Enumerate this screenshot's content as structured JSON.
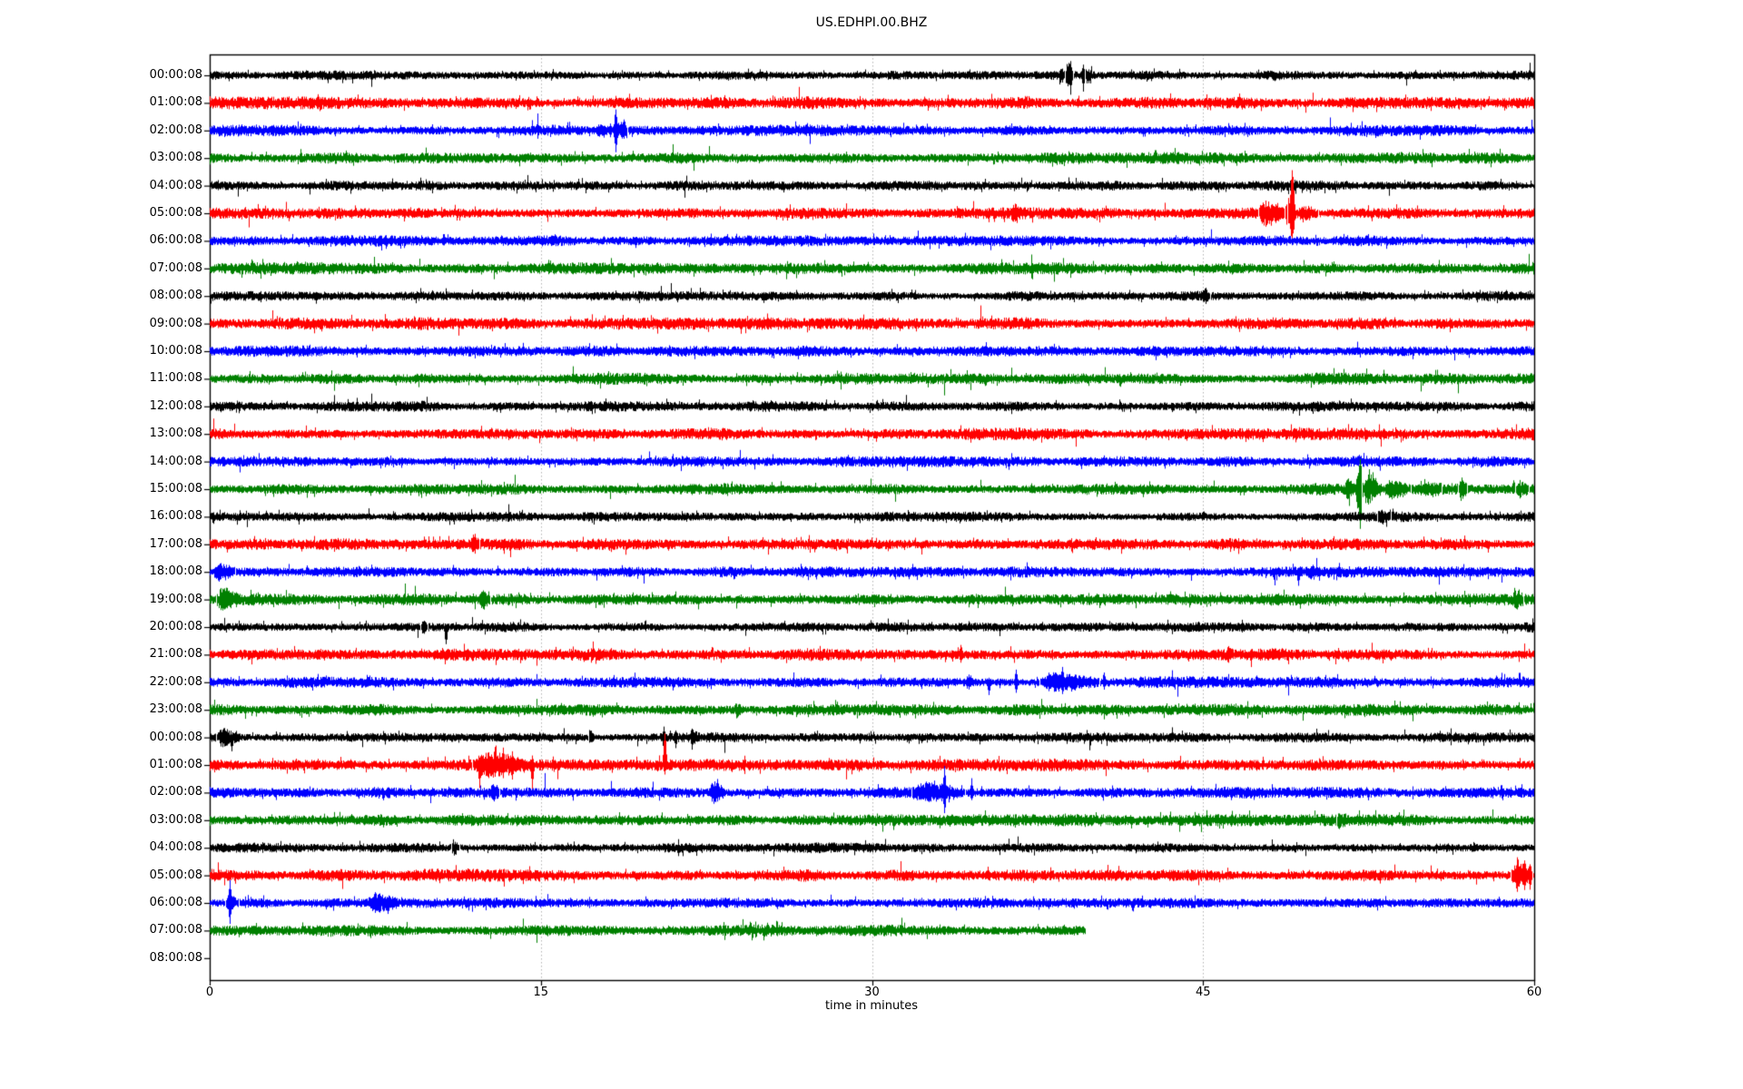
{
  "title": "US.EDHPI.00.BHZ",
  "chart_data": {
    "type": "line",
    "subtype": "seismogram-helicorder-dayplot",
    "title": "US.EDHPI.00.BHZ",
    "xlabel": "time in minutes",
    "xlim": [
      0,
      60
    ],
    "xticks": [
      0,
      15,
      30,
      45,
      60
    ],
    "xtick_labels": [
      "0",
      "15",
      "30",
      "45",
      "60"
    ],
    "grid_x": [
      15,
      30,
      45
    ],
    "grid_style": "dotted",
    "grid_color": "#b3b3b3",
    "axis_color": "#000000",
    "background_color": "#ffffff",
    "trace_colors_cycle": [
      "#000000",
      "#ff0000",
      "#0000ff",
      "#008000"
    ],
    "rows": [
      {
        "label": "00:00:08",
        "color": "#000000",
        "duration_min": 60,
        "noise": 3.4,
        "events": [
          {
            "type": "spike",
            "t": 25.2,
            "up": 6,
            "down": 6,
            "w": 1
          },
          {
            "type": "burst",
            "t": 38.45,
            "dur": 0.25,
            "amp": 8
          },
          {
            "type": "burst",
            "t": 38.75,
            "dur": 0.35,
            "amp": 13
          },
          {
            "type": "spike",
            "t": 39.0,
            "up": 16,
            "down": 22,
            "w": 2
          },
          {
            "type": "spike",
            "t": 39.55,
            "up": 14,
            "down": 18,
            "w": 2
          },
          {
            "type": "burst",
            "t": 39.65,
            "dur": 0.3,
            "amp": 8
          },
          {
            "type": "spike",
            "t": 54.2,
            "up": 2,
            "down": 12,
            "w": 1
          }
        ]
      },
      {
        "label": "01:00:08",
        "color": "#ff0000",
        "duration_min": 60,
        "noise": 4.4,
        "events": []
      },
      {
        "label": "02:00:08",
        "color": "#0000ff",
        "duration_min": 60,
        "noise": 3.9,
        "events": [
          {
            "type": "burst",
            "t": 17.5,
            "dur": 0.6,
            "amp": 7
          },
          {
            "type": "spike",
            "t": 18.15,
            "up": 10,
            "down": 8,
            "w": 2
          },
          {
            "type": "spike",
            "t": 18.4,
            "up": 28,
            "down": 26,
            "w": 2
          },
          {
            "type": "burst",
            "t": 18.3,
            "dur": 0.6,
            "amp": 8
          },
          {
            "type": "spike",
            "t": 18.75,
            "up": 16,
            "down": 12,
            "w": 2
          },
          {
            "type": "spike",
            "t": 44.6,
            "up": 5,
            "down": 3,
            "w": 1
          }
        ]
      },
      {
        "label": "03:00:08",
        "color": "#008000",
        "duration_min": 60,
        "noise": 4.1,
        "events": [
          {
            "type": "spike",
            "t": 4.1,
            "up": 10,
            "down": 6,
            "w": 2
          }
        ]
      },
      {
        "label": "04:00:08",
        "color": "#000000",
        "duration_min": 60,
        "noise": 3.5,
        "events": []
      },
      {
        "label": "05:00:08",
        "color": "#ff0000",
        "duration_min": 60,
        "noise": 4.3,
        "events": [
          {
            "type": "burst",
            "t": 36.3,
            "dur": 0.4,
            "amp": 9
          },
          {
            "type": "burst",
            "t": 47.5,
            "dur": 1.3,
            "amp": 11
          },
          {
            "type": "spike",
            "t": 48.3,
            "up": 12,
            "down": 14,
            "w": 2
          },
          {
            "type": "burst",
            "t": 48.7,
            "dur": 0.5,
            "amp": 13
          },
          {
            "type": "spike",
            "t": 49.02,
            "up": 55,
            "down": 40,
            "w": 3
          },
          {
            "type": "burst",
            "t": 49.3,
            "dur": 0.9,
            "amp": 6
          }
        ]
      },
      {
        "label": "06:00:08",
        "color": "#0000ff",
        "duration_min": 60,
        "noise": 3.8,
        "events": [
          {
            "type": "spike",
            "t": 42.3,
            "up": 2,
            "down": 8,
            "w": 1
          }
        ]
      },
      {
        "label": "07:00:08",
        "color": "#008000",
        "duration_min": 60,
        "noise": 4.2,
        "events": []
      },
      {
        "label": "08:00:08",
        "color": "#000000",
        "duration_min": 60,
        "noise": 3.4,
        "events": [
          {
            "type": "spike",
            "t": 45.1,
            "up": 12,
            "down": 10,
            "w": 2
          },
          {
            "type": "burst",
            "t": 44.9,
            "dur": 0.4,
            "amp": 6
          }
        ]
      },
      {
        "label": "09:00:08",
        "color": "#ff0000",
        "duration_min": 60,
        "noise": 4.3,
        "events": []
      },
      {
        "label": "10:00:08",
        "color": "#0000ff",
        "duration_min": 60,
        "noise": 3.9,
        "events": []
      },
      {
        "label": "11:00:08",
        "color": "#008000",
        "duration_min": 60,
        "noise": 4.1,
        "events": []
      },
      {
        "label": "12:00:08",
        "color": "#000000",
        "duration_min": 60,
        "noise": 3.6,
        "events": []
      },
      {
        "label": "13:00:08",
        "color": "#ff0000",
        "duration_min": 60,
        "noise": 4.2,
        "events": []
      },
      {
        "label": "14:00:08",
        "color": "#0000ff",
        "duration_min": 60,
        "noise": 3.8,
        "events": []
      },
      {
        "label": "15:00:08",
        "color": "#008000",
        "duration_min": 60,
        "noise": 4.1,
        "events": [
          {
            "type": "burst",
            "t": 51.4,
            "dur": 0.5,
            "amp": 10
          },
          {
            "type": "spike",
            "t": 52.0,
            "up": 18,
            "down": 25,
            "w": 2
          },
          {
            "type": "spike",
            "t": 52.1,
            "up": 42,
            "down": 50,
            "w": 3
          },
          {
            "type": "burst",
            "t": 52.2,
            "dur": 0.9,
            "amp": 16
          },
          {
            "type": "spike",
            "t": 52.5,
            "up": 22,
            "down": 12,
            "w": 2
          },
          {
            "type": "burst",
            "t": 53.2,
            "dur": 1.2,
            "amp": 8
          },
          {
            "type": "burst",
            "t": 54.8,
            "dur": 1.0,
            "amp": 4
          },
          {
            "type": "burst",
            "t": 56.55,
            "dur": 0.4,
            "amp": 10
          },
          {
            "type": "spike",
            "t": 59.05,
            "up": 12,
            "down": 6,
            "w": 2
          },
          {
            "type": "burst",
            "t": 59.15,
            "dur": 0.6,
            "amp": 6
          }
        ]
      },
      {
        "label": "16:00:08",
        "color": "#000000",
        "duration_min": 60,
        "noise": 3.4,
        "events": [
          {
            "type": "spike",
            "t": 8.4,
            "up": 5,
            "down": 5,
            "w": 1
          },
          {
            "type": "spike",
            "t": 12.9,
            "up": 2,
            "down": 6,
            "w": 1
          },
          {
            "type": "burst",
            "t": 52.9,
            "dur": 0.6,
            "amp": 5
          },
          {
            "type": "spike",
            "t": 56.8,
            "up": 7,
            "down": 3,
            "w": 1
          },
          {
            "type": "spike",
            "t": 57.1,
            "up": 7,
            "down": 3,
            "w": 1
          }
        ]
      },
      {
        "label": "17:00:08",
        "color": "#ff0000",
        "duration_min": 60,
        "noise": 4.3,
        "events": [
          {
            "type": "spike",
            "t": 9.7,
            "up": 9,
            "down": 4,
            "w": 2
          },
          {
            "type": "burst",
            "t": 11.8,
            "dur": 0.4,
            "amp": 9
          },
          {
            "type": "spike",
            "t": 12.0,
            "up": 12,
            "down": 10,
            "w": 2
          }
        ]
      },
      {
        "label": "18:00:08",
        "color": "#0000ff",
        "duration_min": 60,
        "noise": 3.9,
        "events": [
          {
            "type": "burst",
            "t": 0.15,
            "dur": 1.0,
            "amp": 8
          },
          {
            "type": "spike",
            "t": 0.35,
            "up": 8,
            "down": 10,
            "w": 2
          },
          {
            "type": "spike",
            "t": 11.3,
            "up": 2,
            "down": 7,
            "w": 1
          },
          {
            "type": "spike",
            "t": 17.9,
            "up": 2,
            "down": 7,
            "w": 1
          },
          {
            "type": "spike",
            "t": 49.3,
            "up": 4,
            "down": 16,
            "w": 2
          },
          {
            "type": "burst",
            "t": 49.7,
            "dur": 0.6,
            "amp": 5
          }
        ]
      },
      {
        "label": "19:00:08",
        "color": "#008000",
        "duration_min": 60,
        "noise": 4.2,
        "events": [
          {
            "type": "burst",
            "t": 0.3,
            "dur": 1.1,
            "amp": 10
          },
          {
            "type": "spike",
            "t": 6.6,
            "up": 4,
            "down": 9,
            "w": 1
          },
          {
            "type": "burst",
            "t": 12.2,
            "dur": 0.5,
            "amp": 8
          },
          {
            "type": "spike",
            "t": 12.35,
            "up": 10,
            "down": 4,
            "w": 1
          },
          {
            "type": "spike",
            "t": 57.1,
            "up": 4,
            "down": 11,
            "w": 1
          },
          {
            "type": "burst",
            "t": 59.0,
            "dur": 0.5,
            "amp": 9
          }
        ]
      },
      {
        "label": "20:00:08",
        "color": "#000000",
        "duration_min": 60,
        "noise": 3.5,
        "events": [
          {
            "type": "burst",
            "t": 9.55,
            "dur": 0.3,
            "amp": 5
          },
          {
            "type": "spike",
            "t": 10.7,
            "up": 3,
            "down": 24,
            "w": 2
          },
          {
            "type": "spike",
            "t": 44.8,
            "up": 7,
            "down": 3,
            "w": 1
          }
        ]
      },
      {
        "label": "21:00:08",
        "color": "#ff0000",
        "duration_min": 60,
        "noise": 4.3,
        "events": [
          {
            "type": "spike",
            "t": 34.0,
            "up": 13,
            "down": 11,
            "w": 2
          },
          {
            "type": "burst",
            "t": 46.0,
            "dur": 0.35,
            "amp": 5
          }
        ]
      },
      {
        "label": "22:00:08",
        "color": "#0000ff",
        "duration_min": 60,
        "noise": 3.9,
        "events": [
          {
            "type": "burst",
            "t": 34.25,
            "dur": 0.3,
            "amp": 8
          },
          {
            "type": "spike",
            "t": 35.3,
            "up": 6,
            "down": 18,
            "w": 2
          },
          {
            "type": "spike",
            "t": 36.5,
            "up": 15,
            "down": 13,
            "w": 2
          },
          {
            "type": "burst",
            "t": 37.6,
            "dur": 2.7,
            "amp": 8
          },
          {
            "type": "spike",
            "t": 38.0,
            "up": 12,
            "down": 8,
            "w": 2
          },
          {
            "type": "spike",
            "t": 38.6,
            "up": 22,
            "down": 14,
            "w": 2
          },
          {
            "type": "spike",
            "t": 39.2,
            "up": 10,
            "down": 12,
            "w": 2
          },
          {
            "type": "spike",
            "t": 40.5,
            "up": 13,
            "down": 9,
            "w": 2
          }
        ]
      },
      {
        "label": "23:00:08",
        "color": "#008000",
        "duration_min": 60,
        "noise": 4.1,
        "events": [
          {
            "type": "spike",
            "t": 15.9,
            "up": 9,
            "down": 4,
            "w": 1
          },
          {
            "type": "burst",
            "t": 23.75,
            "dur": 0.35,
            "amp": 6
          }
        ]
      },
      {
        "label": "00:00:08",
        "color": "#000000",
        "duration_min": 60,
        "noise": 3.5,
        "events": [
          {
            "type": "burst",
            "t": 0.3,
            "dur": 1.1,
            "amp": 9
          },
          {
            "type": "spike",
            "t": 1.0,
            "up": 4,
            "down": 16,
            "w": 2
          },
          {
            "type": "spike",
            "t": 3.0,
            "up": 8,
            "down": 4,
            "w": 1
          },
          {
            "type": "burst",
            "t": 17.15,
            "dur": 0.3,
            "amp": 7
          },
          {
            "type": "spike",
            "t": 20.55,
            "up": 12,
            "down": 18,
            "w": 2
          },
          {
            "type": "spike",
            "t": 21.1,
            "up": 10,
            "down": 12,
            "w": 2
          },
          {
            "type": "burst",
            "t": 21.75,
            "dur": 0.35,
            "amp": 10
          },
          {
            "type": "spike",
            "t": 32.6,
            "up": 5,
            "down": 3,
            "w": 1
          },
          {
            "type": "spike",
            "t": 39.6,
            "up": 3,
            "down": 8,
            "w": 1
          }
        ]
      },
      {
        "label": "01:00:08",
        "color": "#ff0000",
        "duration_min": 60,
        "noise": 4.3,
        "events": [
          {
            "type": "burst",
            "t": 11.9,
            "dur": 2.8,
            "amp": 12
          },
          {
            "type": "spike",
            "t": 12.2,
            "up": 10,
            "down": 28,
            "w": 2
          },
          {
            "type": "spike",
            "t": 12.9,
            "up": 20,
            "down": 12,
            "w": 2
          },
          {
            "type": "spike",
            "t": 13.3,
            "up": 24,
            "down": 16,
            "w": 2
          },
          {
            "type": "spike",
            "t": 13.7,
            "up": 16,
            "down": 20,
            "w": 2
          },
          {
            "type": "spike",
            "t": 14.6,
            "up": 12,
            "down": 30,
            "w": 2
          },
          {
            "type": "spike",
            "t": 15.6,
            "up": 3,
            "down": 9,
            "w": 1
          },
          {
            "type": "spike",
            "t": 20.6,
            "up": 45,
            "down": 12,
            "w": 2
          }
        ]
      },
      {
        "label": "02:00:08",
        "color": "#0000ff",
        "duration_min": 60,
        "noise": 3.9,
        "events": [
          {
            "type": "spike",
            "t": 3.9,
            "up": 5,
            "down": 4,
            "w": 1
          },
          {
            "type": "burst",
            "t": 12.7,
            "dur": 0.4,
            "amp": 8
          },
          {
            "type": "burst",
            "t": 22.6,
            "dur": 0.8,
            "amp": 10
          },
          {
            "type": "spike",
            "t": 23.0,
            "up": 18,
            "down": 10,
            "w": 2
          },
          {
            "type": "burst",
            "t": 31.8,
            "dur": 2.4,
            "amp": 9
          },
          {
            "type": "spike",
            "t": 33.25,
            "up": 34,
            "down": 26,
            "w": 2
          },
          {
            "type": "spike",
            "t": 34.5,
            "up": 16,
            "down": 10,
            "w": 2
          }
        ]
      },
      {
        "label": "03:00:08",
        "color": "#008000",
        "duration_min": 60,
        "noise": 4.1,
        "events": [
          {
            "type": "spike",
            "t": 51.2,
            "up": 3,
            "down": 9,
            "w": 1
          },
          {
            "type": "burst",
            "t": 51.05,
            "dur": 0.45,
            "amp": 5
          }
        ]
      },
      {
        "label": "04:00:08",
        "color": "#000000",
        "duration_min": 60,
        "noise": 3.5,
        "events": [
          {
            "type": "burst",
            "t": 10.95,
            "dur": 0.35,
            "amp": 7
          }
        ]
      },
      {
        "label": "05:00:08",
        "color": "#ff0000",
        "duration_min": 60,
        "noise": 4.3,
        "events": [
          {
            "type": "burst",
            "t": 58.95,
            "dur": 0.95,
            "amp": 14
          },
          {
            "type": "spike",
            "t": 59.2,
            "up": 20,
            "down": 24,
            "w": 2
          },
          {
            "type": "spike",
            "t": 59.55,
            "up": 22,
            "down": 18,
            "w": 2
          },
          {
            "type": "spike",
            "t": 59.8,
            "up": 16,
            "down": 20,
            "w": 2
          }
        ]
      },
      {
        "label": "06:00:08",
        "color": "#0000ff",
        "duration_min": 60,
        "noise": 3.8,
        "events": [
          {
            "type": "spike",
            "t": 0.9,
            "up": 28,
            "down": 26,
            "w": 2
          },
          {
            "type": "burst",
            "t": 0.7,
            "dur": 0.6,
            "amp": 8
          },
          {
            "type": "spike",
            "t": 1.6,
            "up": 8,
            "down": 6,
            "w": 1
          },
          {
            "type": "spike",
            "t": 2.6,
            "up": 3,
            "down": 7,
            "w": 1
          },
          {
            "type": "burst",
            "t": 7.1,
            "dur": 1.5,
            "amp": 8
          },
          {
            "type": "spike",
            "t": 7.5,
            "up": 13,
            "down": 8,
            "w": 2
          },
          {
            "type": "spike",
            "t": 8.1,
            "up": 10,
            "down": 10,
            "w": 2
          }
        ]
      },
      {
        "label": "07:00:08",
        "color": "#008000",
        "duration_min": 39.7,
        "noise": 4.2,
        "events": []
      },
      {
        "label": "08:00:08",
        "color": "#000000",
        "duration_min": 0,
        "noise": 0,
        "events": []
      }
    ]
  }
}
